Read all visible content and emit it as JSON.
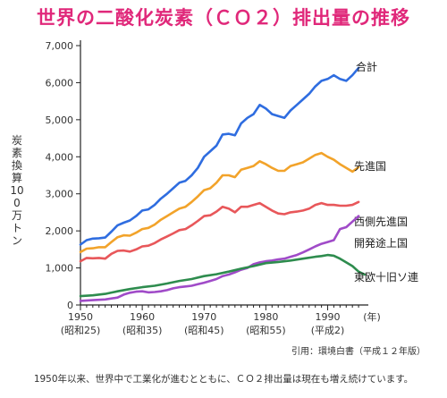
{
  "title": "世界の二酸化炭素（ＣＯ２）排出量の推移",
  "source": "引用：環境白書（平成１２年版）",
  "caption": "1950年以来、世界中で工業化が進むとともに、ＣＯ２排出量は現在も増え続けています。",
  "chart_data": {
    "type": "line",
    "title": "世界の二酸化炭素（ＣＯ２）排出量の推移",
    "ylabel": "炭素換算100万トン",
    "xlabel": "年",
    "xlim": [
      1950,
      1996
    ],
    "ylim": [
      0,
      7000
    ],
    "grid": false,
    "y_ticks": [
      "0",
      "1,000",
      "2,000",
      "3,000",
      "4,000",
      "5,000",
      "6,000",
      "7,000"
    ],
    "x_ticks": [
      {
        "value": 1950,
        "label": "1950",
        "sub": "(昭和25)"
      },
      {
        "value": 1960,
        "label": "1960",
        "sub": "(昭和35)"
      },
      {
        "value": 1970,
        "label": "1970",
        "sub": "(昭和45)"
      },
      {
        "value": 1980,
        "label": "1980",
        "sub": "(昭和55)"
      },
      {
        "value": 1990,
        "label": "1990",
        "sub": "(平成2)"
      }
    ],
    "x_unit": "(年)",
    "series": [
      {
        "name": "合計",
        "color": "#2f6de0",
        "points": [
          [
            1950,
            1630
          ],
          [
            1951,
            1750
          ],
          [
            1952,
            1790
          ],
          [
            1953,
            1800
          ],
          [
            1954,
            1820
          ],
          [
            1955,
            1980
          ],
          [
            1956,
            2150
          ],
          [
            1957,
            2220
          ],
          [
            1958,
            2280
          ],
          [
            1959,
            2400
          ],
          [
            1960,
            2550
          ],
          [
            1961,
            2580
          ],
          [
            1962,
            2700
          ],
          [
            1963,
            2870
          ],
          [
            1964,
            3000
          ],
          [
            1965,
            3150
          ],
          [
            1966,
            3300
          ],
          [
            1967,
            3350
          ],
          [
            1968,
            3500
          ],
          [
            1969,
            3700
          ],
          [
            1970,
            4000
          ],
          [
            1971,
            4150
          ],
          [
            1972,
            4300
          ],
          [
            1973,
            4600
          ],
          [
            1974,
            4620
          ],
          [
            1975,
            4580
          ],
          [
            1976,
            4900
          ],
          [
            1977,
            5050
          ],
          [
            1978,
            5150
          ],
          [
            1979,
            5400
          ],
          [
            1980,
            5300
          ],
          [
            1981,
            5150
          ],
          [
            1982,
            5100
          ],
          [
            1983,
            5050
          ],
          [
            1984,
            5250
          ],
          [
            1985,
            5400
          ],
          [
            1986,
            5550
          ],
          [
            1987,
            5700
          ],
          [
            1988,
            5900
          ],
          [
            1989,
            6050
          ],
          [
            1990,
            6100
          ],
          [
            1991,
            6200
          ],
          [
            1992,
            6100
          ],
          [
            1993,
            6050
          ],
          [
            1994,
            6200
          ],
          [
            1995,
            6400
          ]
        ]
      },
      {
        "name": "先進国",
        "color": "#f2a32a",
        "points": [
          [
            1950,
            1430
          ],
          [
            1951,
            1520
          ],
          [
            1952,
            1530
          ],
          [
            1953,
            1560
          ],
          [
            1954,
            1560
          ],
          [
            1955,
            1700
          ],
          [
            1956,
            1830
          ],
          [
            1957,
            1880
          ],
          [
            1958,
            1870
          ],
          [
            1959,
            1950
          ],
          [
            1960,
            2050
          ],
          [
            1961,
            2080
          ],
          [
            1962,
            2170
          ],
          [
            1963,
            2300
          ],
          [
            1964,
            2400
          ],
          [
            1965,
            2500
          ],
          [
            1966,
            2600
          ],
          [
            1967,
            2650
          ],
          [
            1968,
            2780
          ],
          [
            1969,
            2930
          ],
          [
            1970,
            3100
          ],
          [
            1971,
            3150
          ],
          [
            1972,
            3300
          ],
          [
            1973,
            3500
          ],
          [
            1974,
            3500
          ],
          [
            1975,
            3450
          ],
          [
            1976,
            3650
          ],
          [
            1977,
            3700
          ],
          [
            1978,
            3750
          ],
          [
            1979,
            3880
          ],
          [
            1980,
            3800
          ],
          [
            1981,
            3700
          ],
          [
            1982,
            3620
          ],
          [
            1983,
            3620
          ],
          [
            1984,
            3750
          ],
          [
            1985,
            3800
          ],
          [
            1986,
            3850
          ],
          [
            1987,
            3950
          ],
          [
            1988,
            4050
          ],
          [
            1989,
            4100
          ],
          [
            1990,
            4000
          ],
          [
            1991,
            3920
          ],
          [
            1992,
            3800
          ],
          [
            1993,
            3700
          ],
          [
            1994,
            3600
          ],
          [
            1995,
            3720
          ]
        ]
      },
      {
        "name": "西側先進国",
        "color": "#e8575a",
        "points": [
          [
            1950,
            1180
          ],
          [
            1951,
            1270
          ],
          [
            1952,
            1260
          ],
          [
            1953,
            1270
          ],
          [
            1954,
            1250
          ],
          [
            1955,
            1380
          ],
          [
            1956,
            1460
          ],
          [
            1957,
            1470
          ],
          [
            1958,
            1440
          ],
          [
            1959,
            1500
          ],
          [
            1960,
            1580
          ],
          [
            1961,
            1600
          ],
          [
            1962,
            1670
          ],
          [
            1963,
            1770
          ],
          [
            1964,
            1850
          ],
          [
            1965,
            1930
          ],
          [
            1966,
            2020
          ],
          [
            1967,
            2050
          ],
          [
            1968,
            2150
          ],
          [
            1969,
            2270
          ],
          [
            1970,
            2400
          ],
          [
            1971,
            2420
          ],
          [
            1972,
            2520
          ],
          [
            1973,
            2650
          ],
          [
            1974,
            2600
          ],
          [
            1975,
            2500
          ],
          [
            1976,
            2650
          ],
          [
            1977,
            2650
          ],
          [
            1978,
            2700
          ],
          [
            1979,
            2750
          ],
          [
            1980,
            2650
          ],
          [
            1981,
            2550
          ],
          [
            1982,
            2470
          ],
          [
            1983,
            2450
          ],
          [
            1984,
            2500
          ],
          [
            1985,
            2520
          ],
          [
            1986,
            2550
          ],
          [
            1987,
            2600
          ],
          [
            1988,
            2700
          ],
          [
            1989,
            2750
          ],
          [
            1990,
            2700
          ],
          [
            1991,
            2700
          ],
          [
            1992,
            2680
          ],
          [
            1993,
            2680
          ],
          [
            1994,
            2700
          ],
          [
            1995,
            2780
          ]
        ]
      },
      {
        "name": "開発途上国",
        "color": "#a04bc8",
        "points": [
          [
            1950,
            110
          ],
          [
            1952,
            130
          ],
          [
            1954,
            150
          ],
          [
            1956,
            200
          ],
          [
            1957,
            280
          ],
          [
            1958,
            330
          ],
          [
            1959,
            360
          ],
          [
            1960,
            370
          ],
          [
            1961,
            340
          ],
          [
            1962,
            350
          ],
          [
            1963,
            370
          ],
          [
            1964,
            400
          ],
          [
            1965,
            450
          ],
          [
            1966,
            480
          ],
          [
            1967,
            500
          ],
          [
            1968,
            520
          ],
          [
            1969,
            560
          ],
          [
            1970,
            600
          ],
          [
            1971,
            650
          ],
          [
            1972,
            700
          ],
          [
            1973,
            780
          ],
          [
            1974,
            820
          ],
          [
            1975,
            880
          ],
          [
            1976,
            950
          ],
          [
            1977,
            1000
          ],
          [
            1978,
            1100
          ],
          [
            1979,
            1150
          ],
          [
            1980,
            1180
          ],
          [
            1981,
            1200
          ],
          [
            1982,
            1230
          ],
          [
            1983,
            1250
          ],
          [
            1984,
            1300
          ],
          [
            1985,
            1350
          ],
          [
            1986,
            1420
          ],
          [
            1987,
            1500
          ],
          [
            1988,
            1580
          ],
          [
            1989,
            1650
          ],
          [
            1990,
            1700
          ],
          [
            1991,
            1750
          ],
          [
            1992,
            2050
          ],
          [
            1993,
            2100
          ],
          [
            1994,
            2250
          ],
          [
            1995,
            2400
          ]
        ]
      },
      {
        "name": "東欧十旧ソ連",
        "color": "#2e8c4e",
        "points": [
          [
            1950,
            240
          ],
          [
            1952,
            260
          ],
          [
            1954,
            300
          ],
          [
            1956,
            370
          ],
          [
            1958,
            430
          ],
          [
            1960,
            480
          ],
          [
            1962,
            520
          ],
          [
            1964,
            580
          ],
          [
            1966,
            650
          ],
          [
            1968,
            700
          ],
          [
            1970,
            780
          ],
          [
            1972,
            830
          ],
          [
            1974,
            900
          ],
          [
            1976,
            980
          ],
          [
            1978,
            1050
          ],
          [
            1980,
            1130
          ],
          [
            1982,
            1160
          ],
          [
            1984,
            1200
          ],
          [
            1986,
            1250
          ],
          [
            1988,
            1300
          ],
          [
            1989,
            1320
          ],
          [
            1990,
            1350
          ],
          [
            1991,
            1330
          ],
          [
            1992,
            1250
          ],
          [
            1993,
            1150
          ],
          [
            1994,
            1050
          ],
          [
            1995,
            900
          ],
          [
            1996,
            820
          ]
        ]
      }
    ]
  }
}
